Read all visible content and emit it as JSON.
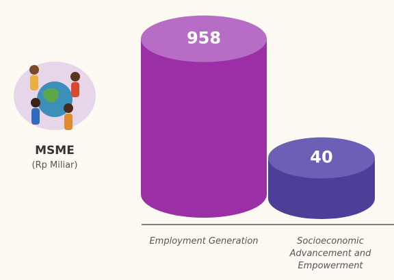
{
  "chart_data": {
    "type": "bar",
    "label": "MSME",
    "unit": "(Rp Miliar)",
    "categories": [
      "Employment Generation",
      "Socioeconomic Advancement and Empowerment"
    ],
    "values": [
      958,
      40
    ],
    "colors": [
      "#9a2fa6",
      "#4d3f98"
    ],
    "top_colors": [
      "#b76cc6",
      "#6b60b6"
    ]
  }
}
